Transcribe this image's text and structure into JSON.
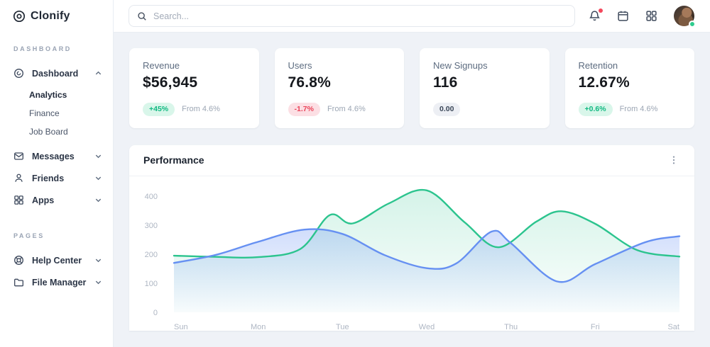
{
  "brand": {
    "name": "Clonify"
  },
  "topbar": {
    "search_placeholder": "Search...",
    "icons": [
      "bell-icon",
      "calendar-icon",
      "apps-grid-icon",
      "avatar"
    ],
    "notification_dot_color": "#f4485c",
    "status_dot_color": "#2ecc8e"
  },
  "sidebar": {
    "sections": [
      {
        "label": "DASHBOARD",
        "items": [
          {
            "label": "Dashboard",
            "icon": "dashboard-disc-icon",
            "expanded": true,
            "children": [
              {
                "label": "Analytics",
                "active": true
              },
              {
                "label": "Finance",
                "active": false
              },
              {
                "label": "Job Board",
                "active": false
              }
            ]
          },
          {
            "label": "Messages",
            "icon": "envelope-icon",
            "expanded": false
          },
          {
            "label": "Friends",
            "icon": "person-icon",
            "expanded": false
          },
          {
            "label": "Apps",
            "icon": "grid-icon",
            "expanded": false
          }
        ]
      },
      {
        "label": "PAGES",
        "items": [
          {
            "label": "Help Center",
            "icon": "lifebuoy-icon",
            "expanded": false
          },
          {
            "label": "File Manager",
            "icon": "folder-icon",
            "expanded": false
          }
        ]
      }
    ]
  },
  "stats": [
    {
      "title": "Revenue",
      "value": "$56,945",
      "badge": "+45%",
      "badge_type": "positive",
      "note": "From 4.6%"
    },
    {
      "title": "Users",
      "value": "76.8%",
      "badge": "-1.7%",
      "badge_type": "negative",
      "note": "From 4.6%"
    },
    {
      "title": "New Signups",
      "value": "116",
      "badge": "0.00",
      "badge_type": "neutral",
      "note": ""
    },
    {
      "title": "Retention",
      "value": "12.67%",
      "badge": "+0.6%",
      "badge_type": "positive",
      "note": "From 4.6%"
    }
  ],
  "panel": {
    "title": "Performance"
  },
  "chart_data": {
    "type": "area",
    "title": "Performance",
    "x_labels": [
      "Sun",
      "Mon",
      "Tue",
      "Wed",
      "Thu",
      "Fri",
      "Sat"
    ],
    "y_ticks": [
      0,
      100,
      200,
      300,
      400
    ],
    "ylim": [
      0,
      440
    ],
    "grid": false,
    "legend": "none",
    "series": [
      {
        "name": "series-green",
        "color": "#2cc48e",
        "points": [
          [
            0,
            195
          ],
          [
            0.5,
            191
          ],
          [
            1,
            190
          ],
          [
            1.5,
            218
          ],
          [
            1.85,
            335
          ],
          [
            2.12,
            306
          ],
          [
            2.55,
            375
          ],
          [
            3,
            420
          ],
          [
            3.45,
            310
          ],
          [
            3.85,
            224
          ],
          [
            4.3,
            312
          ],
          [
            4.6,
            348
          ],
          [
            5,
            305
          ],
          [
            5.5,
            214
          ],
          [
            6,
            192
          ]
        ]
      },
      {
        "name": "series-blue",
        "color": "#6690f2",
        "points": [
          [
            0,
            170
          ],
          [
            0.5,
            198
          ],
          [
            1,
            243
          ],
          [
            1.55,
            285
          ],
          [
            2,
            270
          ],
          [
            2.5,
            197
          ],
          [
            3,
            152
          ],
          [
            3.35,
            168
          ],
          [
            3.77,
            278
          ],
          [
            4,
            238
          ],
          [
            4.55,
            106
          ],
          [
            5,
            166
          ],
          [
            5.6,
            242
          ],
          [
            6,
            262
          ]
        ]
      }
    ]
  }
}
